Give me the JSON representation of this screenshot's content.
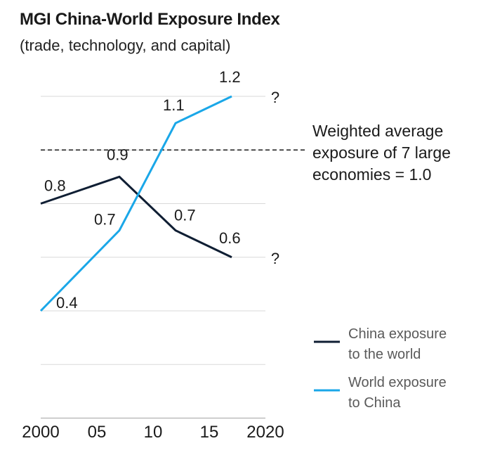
{
  "chart_data": {
    "type": "line",
    "title": "MGI China-World Exposure Index",
    "subtitle": "(trade, technology, and capital)",
    "x_ticks": [
      "2000",
      "05",
      "10",
      "15",
      "2020"
    ],
    "xlim": [
      2000,
      2020
    ],
    "ylim": [
      0.4,
      1.2
    ],
    "grid": true,
    "reference_line": {
      "value": 1.0,
      "label_lines": [
        "Weighted average",
        "exposure of 7 large",
        "economies = 1.0"
      ]
    },
    "series": [
      {
        "name_lines": [
          "China exposure",
          "to the world"
        ],
        "color": "#0f1e33",
        "x": [
          2000,
          2007,
          2012,
          2017
        ],
        "y": [
          0.8,
          0.9,
          0.7,
          0.6
        ],
        "labels": [
          "0.8",
          "0.9",
          "0.7",
          "0.6"
        ],
        "end_marker": "?"
      },
      {
        "name_lines": [
          "World exposure",
          "to China"
        ],
        "color": "#1aa7e8",
        "x": [
          2000,
          2007,
          2012,
          2017
        ],
        "y": [
          0.4,
          0.7,
          1.1,
          1.2
        ],
        "labels": [
          "0.4",
          "0.7",
          "1.1",
          "1.2"
        ],
        "end_marker": "?"
      }
    ],
    "legend_position": "bottom-right"
  }
}
